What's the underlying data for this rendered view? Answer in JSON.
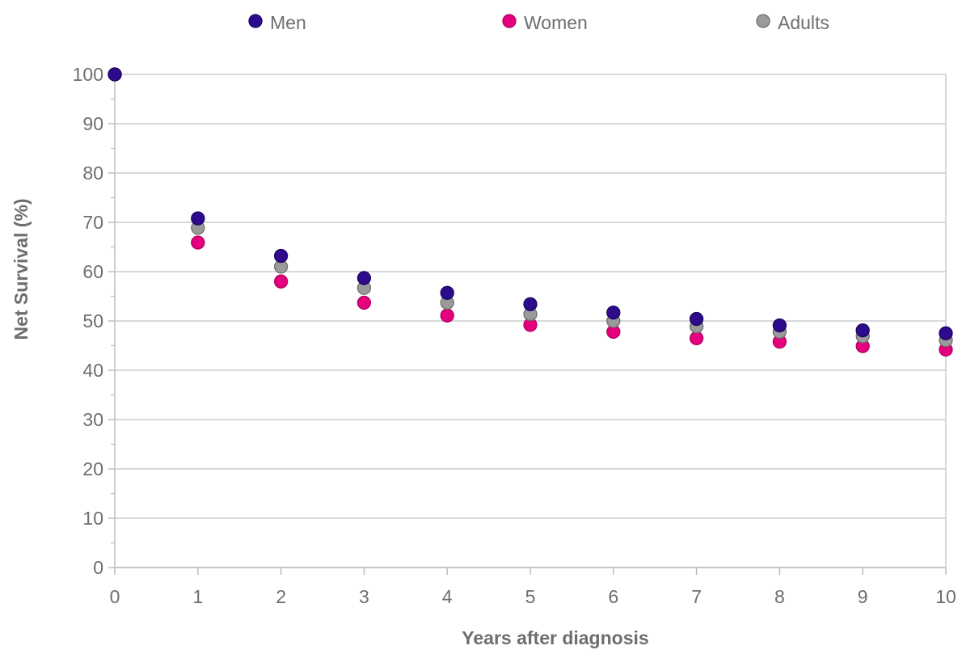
{
  "chart_data": {
    "type": "scatter",
    "xlabel": "Years after diagnosis",
    "ylabel": "Net Survival (%)",
    "xlim": [
      0,
      10
    ],
    "ylim": [
      0,
      100
    ],
    "x_ticks": [
      "0",
      "1",
      "2",
      "3",
      "4",
      "5",
      "6",
      "7",
      "8",
      "9",
      "10"
    ],
    "y_ticks": [
      "0",
      "10",
      "20",
      "30",
      "40",
      "50",
      "60",
      "70",
      "80",
      "90",
      "100"
    ],
    "grid": "horizontal",
    "legend_position": "top",
    "x": [
      0,
      1,
      2,
      3,
      4,
      5,
      6,
      7,
      8,
      9,
      10
    ],
    "series": [
      {
        "name": "Women",
        "color": "#e5007d",
        "values": [
          100,
          65.9,
          58.0,
          53.7,
          51.1,
          49.2,
          47.8,
          46.5,
          45.8,
          44.9,
          44.2
        ]
      },
      {
        "name": "Adults",
        "color": "#9a9a9a",
        "values": [
          100,
          68.9,
          61.0,
          56.7,
          53.7,
          51.4,
          50.0,
          48.9,
          47.8,
          46.9,
          46.1
        ]
      },
      {
        "name": "Men",
        "color": "#2e0a8c",
        "values": [
          100,
          70.8,
          63.2,
          58.7,
          55.7,
          53.4,
          51.7,
          50.4,
          49.1,
          48.1,
          47.5
        ]
      }
    ],
    "legend": [
      {
        "name": "Men",
        "color": "#2e0a8c"
      },
      {
        "name": "Women",
        "color": "#e5007d"
      },
      {
        "name": "Adults",
        "color": "#9a9a9a"
      }
    ]
  }
}
